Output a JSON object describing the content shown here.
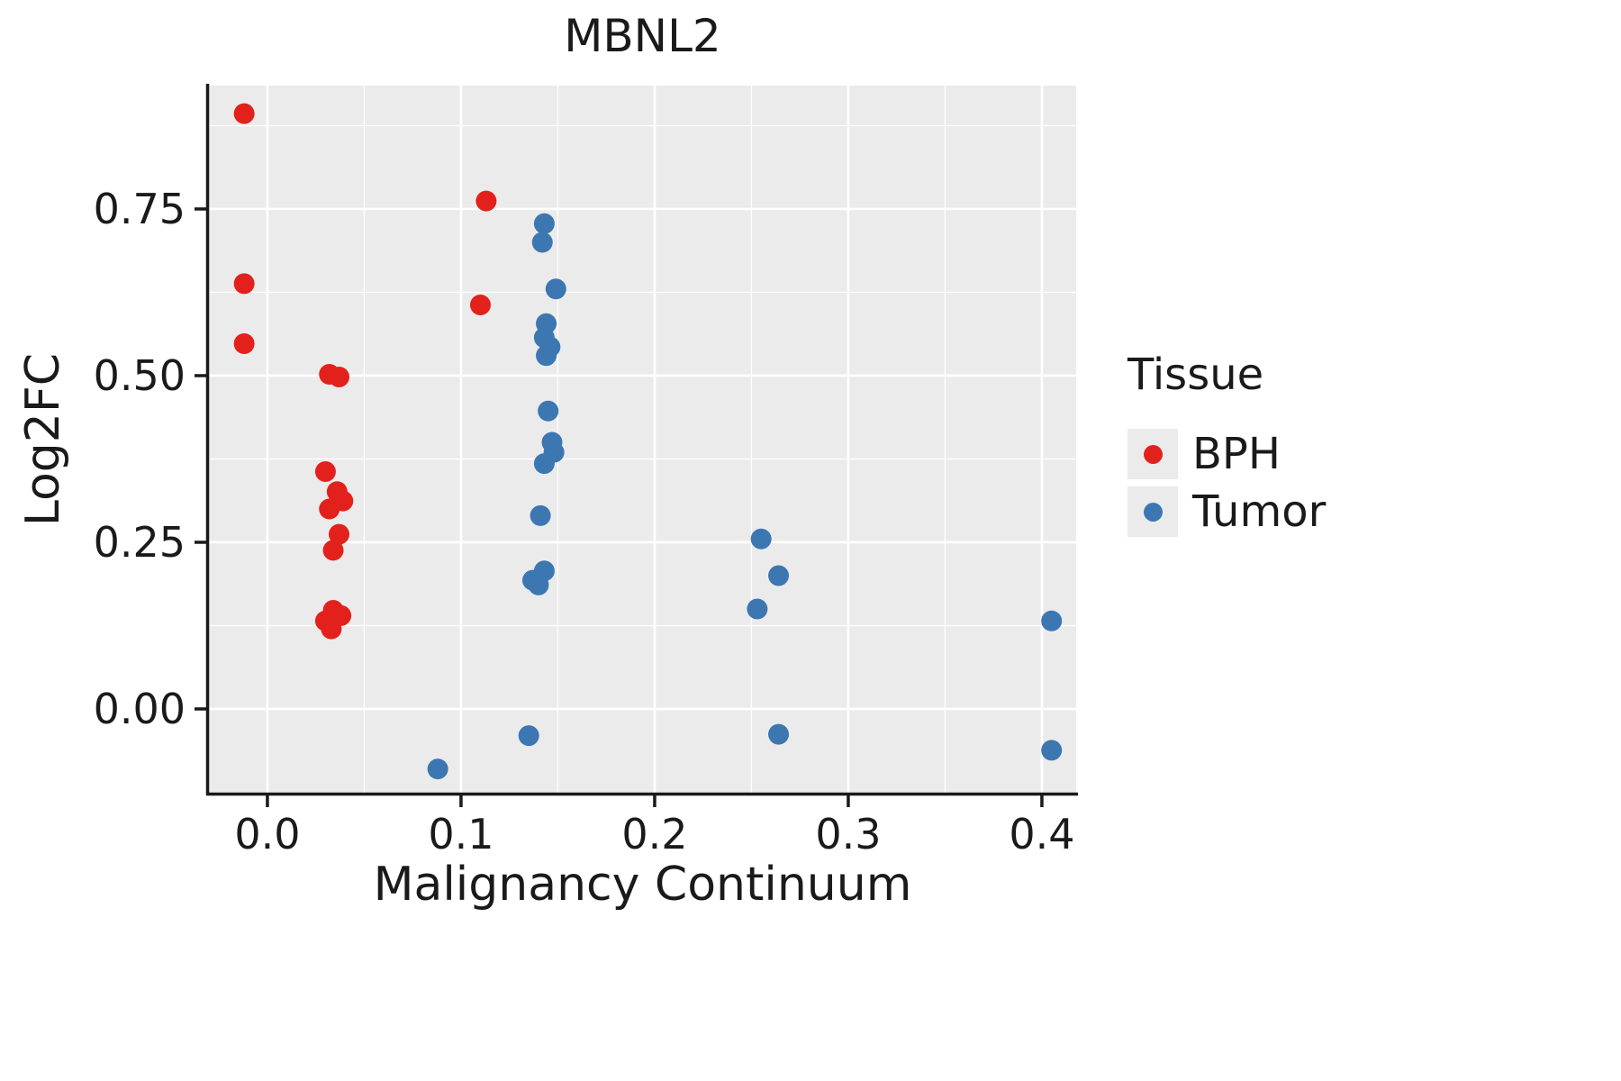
{
  "chart_data": {
    "type": "scatter",
    "title": "MBNL2",
    "xlabel": "Malignancy Continuum",
    "ylabel": "Log2FC",
    "xlim": [
      -0.0302,
      0.4177
    ],
    "ylim": [
      -0.1257,
      0.9351
    ],
    "x_ticks": {
      "values": [
        0.0,
        0.1,
        0.2,
        0.3,
        0.4
      ],
      "labels": [
        "0.0",
        "0.1",
        "0.2",
        "0.3",
        "0.4"
      ]
    },
    "y_ticks": {
      "values": [
        0.0,
        0.25,
        0.5,
        0.75
      ],
      "labels": [
        "0.00",
        "0.25",
        "0.50",
        "0.75"
      ]
    },
    "x_minor": [
      0.05,
      0.15,
      0.25,
      0.35
    ],
    "y_minor": [
      0.125,
      0.375,
      0.625,
      0.875
    ],
    "grid": true,
    "panel_bg": "#EBEBEB",
    "grid_color": "#FFFFFF",
    "axis_color": "#1a1a1a",
    "point_radius": 11.5,
    "legend": {
      "title": "Tissue",
      "position": "right"
    },
    "series": [
      {
        "name": "BPH",
        "color": "#E3211C",
        "points": [
          [
            -0.012,
            0.893
          ],
          [
            -0.012,
            0.638
          ],
          [
            -0.012,
            0.548
          ],
          [
            0.032,
            0.502
          ],
          [
            0.037,
            0.498
          ],
          [
            0.03,
            0.356
          ],
          [
            0.036,
            0.326
          ],
          [
            0.039,
            0.312
          ],
          [
            0.032,
            0.3
          ],
          [
            0.037,
            0.262
          ],
          [
            0.034,
            0.238
          ],
          [
            0.034,
            0.148
          ],
          [
            0.038,
            0.14
          ],
          [
            0.03,
            0.132
          ],
          [
            0.033,
            0.12
          ],
          [
            0.113,
            0.762
          ],
          [
            0.11,
            0.606
          ]
        ]
      },
      {
        "name": "Tumor",
        "color": "#3C77B2",
        "points": [
          [
            0.143,
            0.728
          ],
          [
            0.142,
            0.7
          ],
          [
            0.149,
            0.63
          ],
          [
            0.144,
            0.578
          ],
          [
            0.143,
            0.557
          ],
          [
            0.146,
            0.543
          ],
          [
            0.144,
            0.53
          ],
          [
            0.145,
            0.447
          ],
          [
            0.147,
            0.4
          ],
          [
            0.148,
            0.385
          ],
          [
            0.143,
            0.368
          ],
          [
            0.141,
            0.29
          ],
          [
            0.143,
            0.207
          ],
          [
            0.137,
            0.193
          ],
          [
            0.14,
            0.186
          ],
          [
            0.255,
            0.255
          ],
          [
            0.264,
            0.2
          ],
          [
            0.253,
            0.15
          ],
          [
            0.135,
            -0.04
          ],
          [
            0.088,
            -0.09
          ],
          [
            0.264,
            -0.038
          ],
          [
            0.405,
            0.132
          ],
          [
            0.405,
            -0.062
          ]
        ]
      }
    ]
  }
}
